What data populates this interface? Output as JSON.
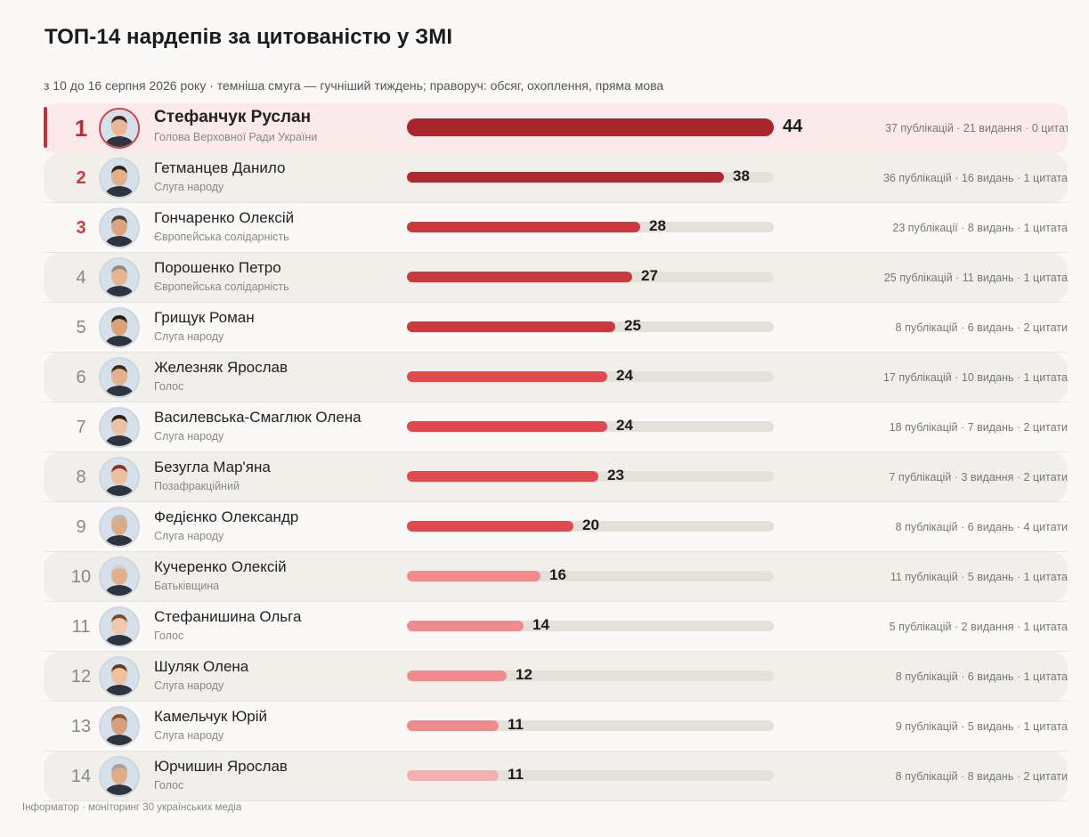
{
  "title": "ТОП-14 нардепів за цитованістю у ЗМІ",
  "subtitle": "з 10 до 16 серпня 2026 року · темніша смуга — гучніший тиждень; праворуч: обсяг, охоплення, пряма мова",
  "footer": "Інформатор · моніторинг 30 українських медіа",
  "colors": {
    "accent": "#c63034",
    "bar_top": "#a8262c",
    "bar_dark": "#c83a3e",
    "bar_mid": "#e04a4e",
    "bar_light": "#f08a8c",
    "bar_pale": "#f4b0b1",
    "track": "#e5e1da"
  },
  "chart_data": {
    "type": "bar",
    "orientation": "horizontal",
    "title": "ТОП-14 нардепів за цитованістю у ЗМІ",
    "subtitle": "з 10 до 16 серпня 2026 року · темніша смуга — гучніший тиждень; праворуч: обсяг, охоплення, пряма мова",
    "xlim": [
      0,
      44
    ],
    "grid": false,
    "legend": "none",
    "rows": [
      {
        "rank": "1",
        "name": "Стефанчук Руслан",
        "party": "Голова Верховної Ради України",
        "value": 44,
        "meta": "37 публікацій · 21 видання · 0 цитат"
      },
      {
        "rank": "2",
        "name": "Гетманцев Данило",
        "party": "Слуга народу",
        "value": 38,
        "meta": "36 публікацій · 16 видань · 1 цитата"
      },
      {
        "rank": "3",
        "name": "Гончаренко Олексій",
        "party": "Європейська солідарність",
        "value": 28,
        "meta": "23 публікації · 8 видань · 1 цитата"
      },
      {
        "rank": "4",
        "name": "Порошенко Петро",
        "party": "Європейська солідарність",
        "value": 27,
        "meta": "25 публікацій · 11 видань · 1 цитата"
      },
      {
        "rank": "5",
        "name": "Грищук Роман",
        "party": "Слуга народу",
        "value": 25,
        "meta": "8 публікацій · 6 видань · 2 цитати"
      },
      {
        "rank": "6",
        "name": "Железняк Ярослав",
        "party": "Голос",
        "value": 24,
        "meta": "17 публікацій · 10 видань · 1 цитата"
      },
      {
        "rank": "7",
        "name": "Василевська-Смаглюк Олена",
        "party": "Слуга народу",
        "value": 24,
        "meta": "18 публікацій · 7 видань · 2 цитати"
      },
      {
        "rank": "8",
        "name": "Безугла Мар'яна",
        "party": "Позафракційний",
        "value": 23,
        "meta": "7 публікацій · 3 видання · 2 цитати"
      },
      {
        "rank": "9",
        "name": "Федієнко Олександр",
        "party": "Слуга народу",
        "value": 20,
        "meta": "8 публікацій · 6 видань · 4 цитати"
      },
      {
        "rank": "10",
        "name": "Кучеренко Олексій",
        "party": "Батьківщина",
        "value": 16,
        "meta": "11 публікацій · 5 видань · 1 цитата"
      },
      {
        "rank": "11",
        "name": "Стефанишина Ольга",
        "party": "Голос",
        "value": 14,
        "meta": "5 публікацій · 2 видання · 1 цитата"
      },
      {
        "rank": "12",
        "name": "Шуляк Олена",
        "party": "Слуга народу",
        "value": 12,
        "meta": "8 публікацій · 6 видань · 1 цитата"
      },
      {
        "rank": "13",
        "name": "Камельчук Юрій",
        "party": "Слуга народу",
        "value": 11,
        "meta": "9 публікацій · 5 видань · 1 цитата"
      },
      {
        "rank": "14",
        "name": "Юрчишин Ярослав",
        "party": "Голос",
        "value": 11,
        "meta": "8 публікацій · 8 видань · 2 цитати"
      }
    ]
  }
}
